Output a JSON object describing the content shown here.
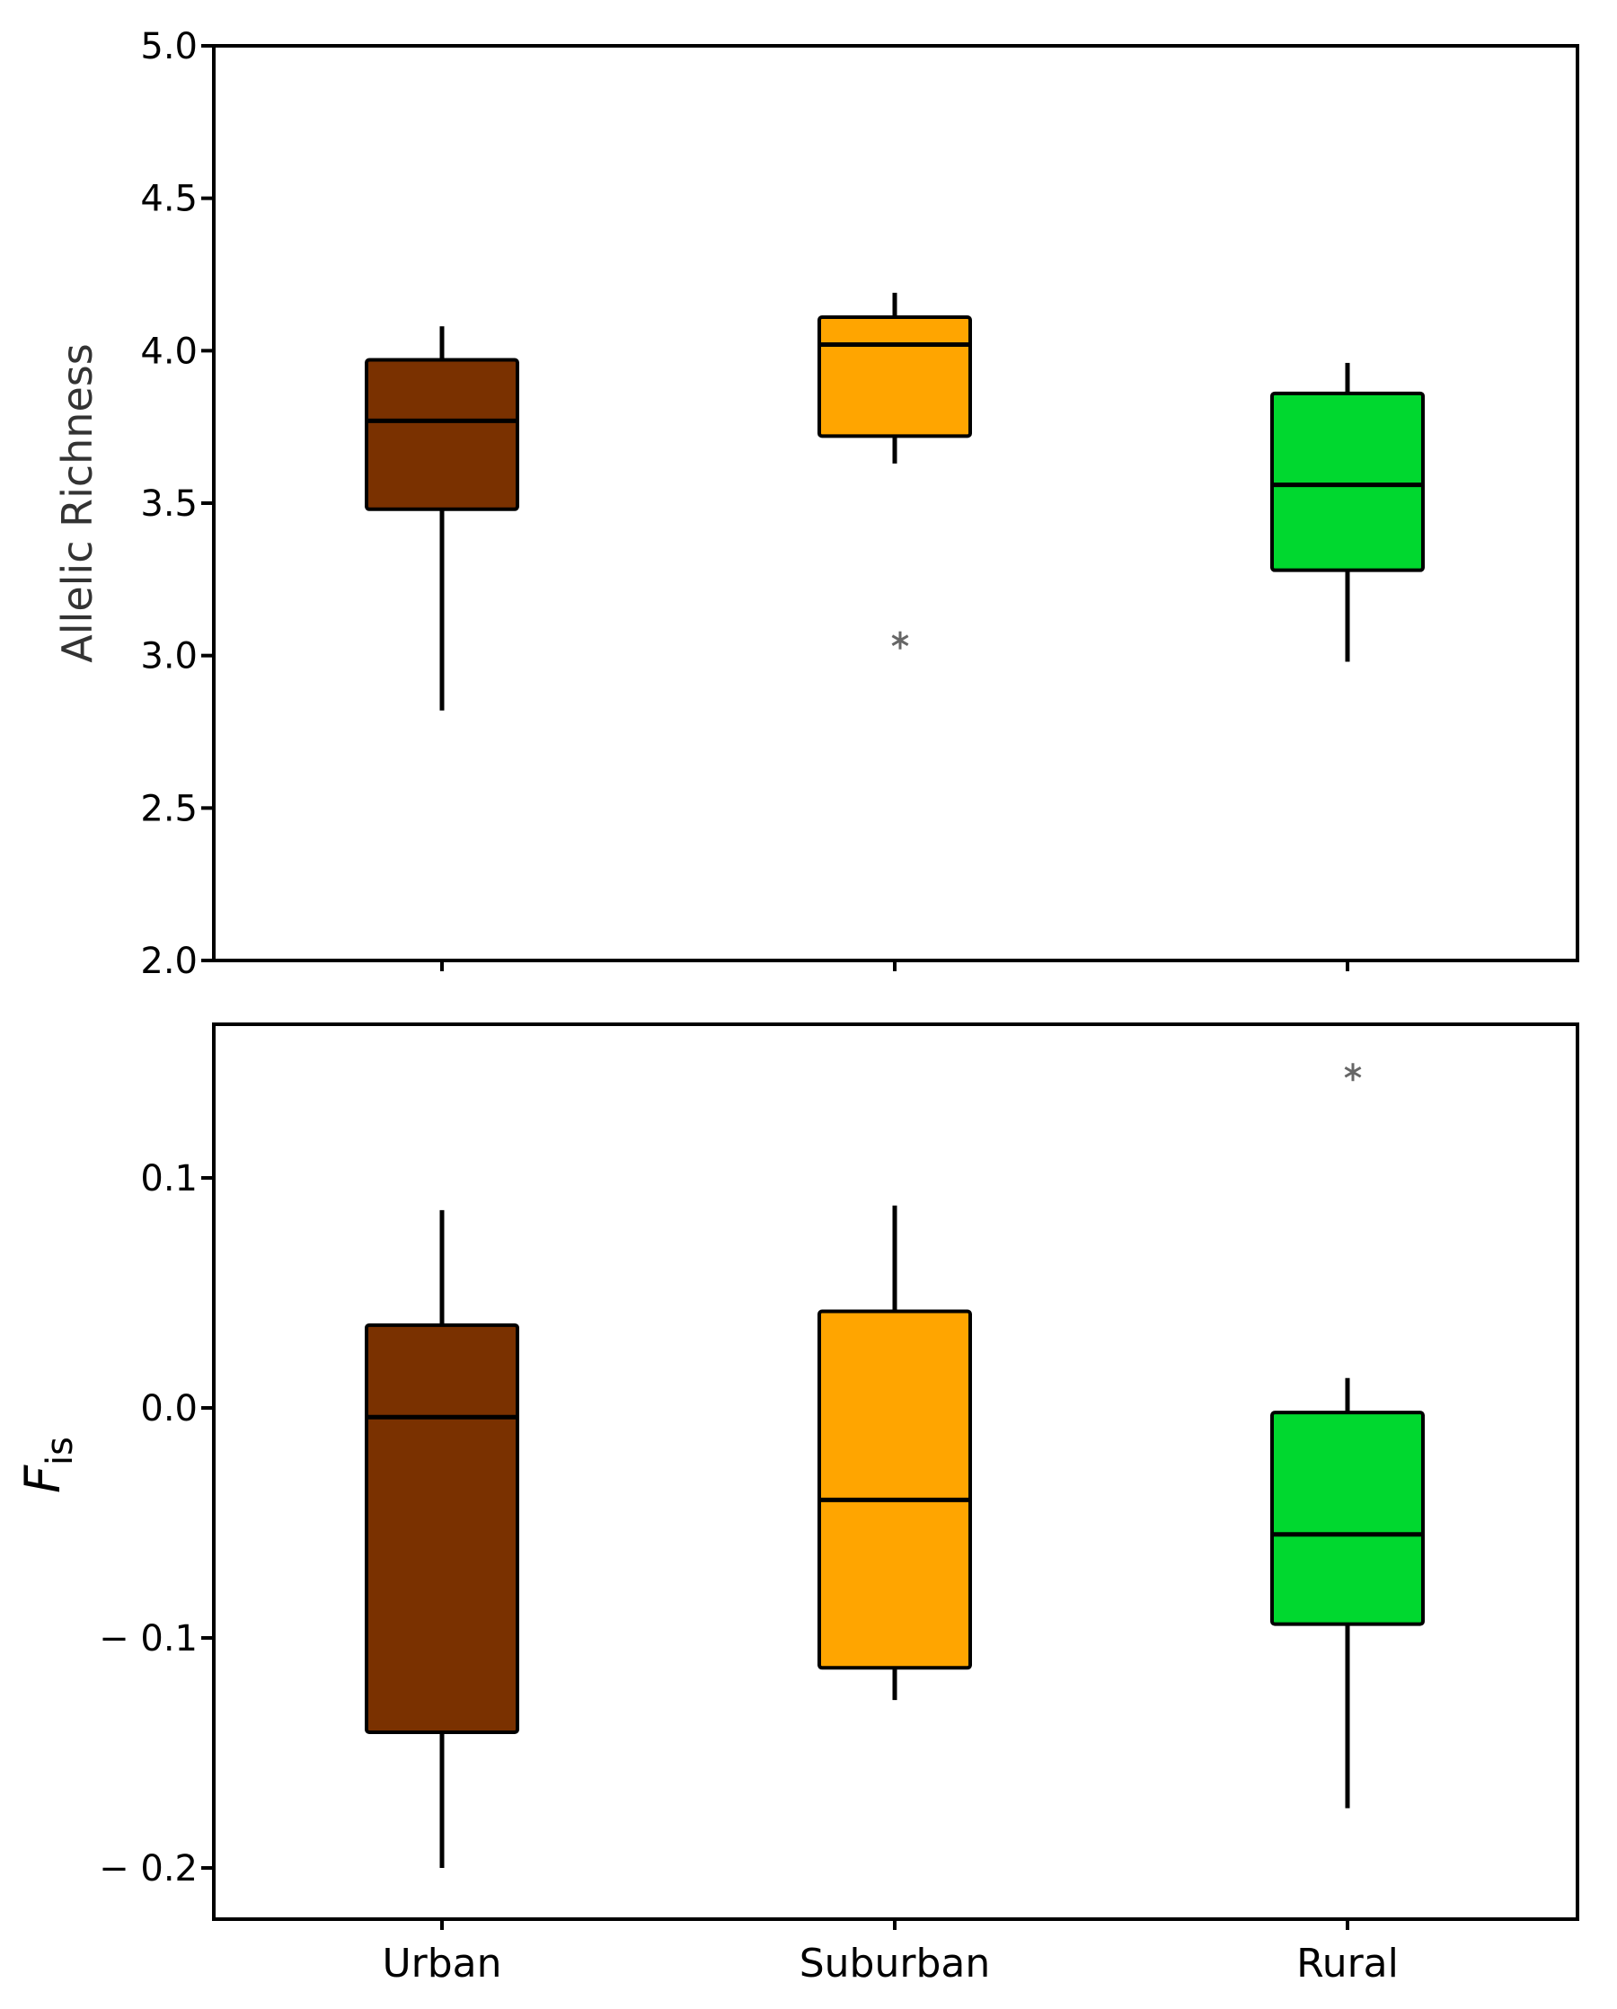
{
  "colors": {
    "Urban": "#7a3100",
    "Suburban": "#ffa500",
    "Rural": "#00d82f",
    "outlier": "#666666"
  },
  "chart_data": [
    {
      "type": "box",
      "panel": "top",
      "ylabel": "Allelic Richness",
      "ylim": [
        2.0,
        5.0
      ],
      "yticks": [
        "5.0",
        "4.5",
        "4.0",
        "3.5",
        "3.0",
        "2.5",
        "2.0"
      ],
      "categories": [
        "Urban",
        "Suburban",
        "Rural"
      ],
      "boxes": [
        {
          "category": "Urban",
          "whisker_low": 2.82,
          "q1": 3.48,
          "median": 3.77,
          "q3": 3.97,
          "whisker_high": 4.08,
          "outliers": []
        },
        {
          "category": "Suburban",
          "whisker_low": 3.63,
          "q1": 3.72,
          "median": 4.02,
          "q3": 4.11,
          "whisker_high": 4.19,
          "outliers": [
            3.05
          ]
        },
        {
          "category": "Rural",
          "whisker_low": 2.98,
          "q1": 3.28,
          "median": 3.56,
          "q3": 3.86,
          "whisker_high": 3.96,
          "outliers": []
        }
      ]
    },
    {
      "type": "box",
      "panel": "bottom",
      "ylabel": "F",
      "ylabel_sub": "is",
      "ylim": [
        -0.222,
        0.167
      ],
      "yticks": [
        "0.1",
        "0.0",
        "− 0.1",
        "− 0.2"
      ],
      "ytick_values": [
        0.1,
        0.0,
        -0.1,
        -0.2
      ],
      "categories": [
        "Urban",
        "Suburban",
        "Rural"
      ],
      "boxes": [
        {
          "category": "Urban",
          "whisker_low": -0.2,
          "q1": -0.141,
          "median": -0.004,
          "q3": 0.036,
          "whisker_high": 0.086,
          "outliers": []
        },
        {
          "category": "Suburban",
          "whisker_low": -0.127,
          "q1": -0.113,
          "median": -0.04,
          "q3": 0.042,
          "whisker_high": 0.088,
          "outliers": []
        },
        {
          "category": "Rural",
          "whisker_low": -0.174,
          "q1": -0.094,
          "median": -0.055,
          "q3": -0.002,
          "whisker_high": 0.013,
          "outliers": [
            0.146
          ]
        }
      ]
    }
  ]
}
